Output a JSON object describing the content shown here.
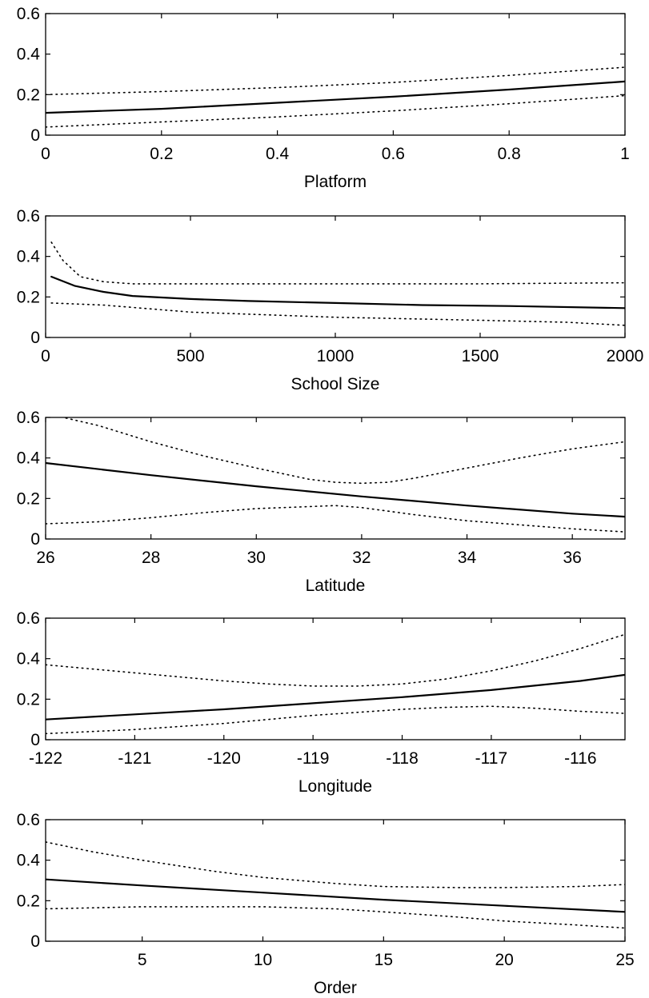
{
  "chart_data": [
    {
      "type": "line",
      "xlabel": "Platform",
      "ylabel": "",
      "xlim": [
        0,
        1
      ],
      "ylim": [
        0,
        0.6
      ],
      "xticks": [
        0,
        0.2,
        0.4,
        0.6,
        0.8,
        1
      ],
      "xtick_labels": [
        "0",
        "0.2",
        "0.4",
        "0.6",
        "0.8",
        "1"
      ],
      "yticks": [
        0,
        0.2,
        0.4,
        0.6
      ],
      "ytick_labels": [
        "0",
        "0.2",
        "0.4",
        "0.6"
      ],
      "series": [
        {
          "style": "solid",
          "x": [
            0,
            0.2,
            0.4,
            0.6,
            0.8,
            1
          ],
          "y": [
            0.11,
            0.13,
            0.16,
            0.19,
            0.225,
            0.265
          ]
        },
        {
          "style": "dotted",
          "x": [
            0,
            0.2,
            0.4,
            0.6,
            0.8,
            1
          ],
          "y": [
            0.2,
            0.215,
            0.235,
            0.26,
            0.295,
            0.335
          ]
        },
        {
          "style": "dotted",
          "x": [
            0,
            0.2,
            0.4,
            0.6,
            0.8,
            1
          ],
          "y": [
            0.04,
            0.065,
            0.09,
            0.12,
            0.155,
            0.195
          ]
        }
      ]
    },
    {
      "type": "line",
      "xlabel": "School Size",
      "ylabel": "",
      "xlim": [
        0,
        2000
      ],
      "ylim": [
        0,
        0.6
      ],
      "xticks": [
        0,
        500,
        1000,
        1500,
        2000
      ],
      "xtick_labels": [
        "0",
        "500",
        "1000",
        "1500",
        "2000"
      ],
      "yticks": [
        0,
        0.2,
        0.4,
        0.6
      ],
      "ytick_labels": [
        "0",
        "0.2",
        "0.4",
        "0.6"
      ],
      "series": [
        {
          "style": "solid",
          "x": [
            20,
            100,
            200,
            300,
            500,
            700,
            1000,
            1300,
            1600,
            2000
          ],
          "y": [
            0.3,
            0.255,
            0.225,
            0.205,
            0.19,
            0.18,
            0.17,
            0.16,
            0.155,
            0.145
          ]
        },
        {
          "style": "dotted",
          "x": [
            20,
            60,
            120,
            200,
            300,
            500,
            1000,
            1500,
            2000
          ],
          "y": [
            0.47,
            0.38,
            0.3,
            0.275,
            0.265,
            0.265,
            0.265,
            0.265,
            0.27
          ]
        },
        {
          "style": "dotted",
          "x": [
            20,
            200,
            500,
            1000,
            1500,
            1800,
            2000
          ],
          "y": [
            0.17,
            0.16,
            0.125,
            0.1,
            0.085,
            0.075,
            0.06
          ]
        }
      ]
    },
    {
      "type": "line",
      "xlabel": "Latitude",
      "ylabel": "",
      "xlim": [
        26,
        37
      ],
      "ylim": [
        0,
        0.6
      ],
      "xticks": [
        26,
        28,
        30,
        32,
        34,
        36
      ],
      "xtick_labels": [
        "26",
        "28",
        "30",
        "32",
        "34",
        "36"
      ],
      "yticks": [
        0,
        0.2,
        0.4,
        0.6
      ],
      "ytick_labels": [
        "0",
        "0.2",
        "0.4",
        "0.6"
      ],
      "series": [
        {
          "style": "solid",
          "x": [
            26,
            28,
            30,
            32,
            34,
            36,
            37
          ],
          "y": [
            0.375,
            0.315,
            0.26,
            0.21,
            0.165,
            0.125,
            0.11
          ]
        },
        {
          "style": "dotted",
          "x": [
            26,
            27,
            28,
            29,
            30,
            31,
            31.5,
            32,
            32.5,
            33,
            34,
            35,
            36,
            37
          ],
          "y": [
            0.62,
            0.56,
            0.48,
            0.41,
            0.35,
            0.295,
            0.28,
            0.275,
            0.28,
            0.3,
            0.35,
            0.4,
            0.445,
            0.48
          ]
        },
        {
          "style": "dotted",
          "x": [
            26,
            27,
            28,
            29,
            30,
            31,
            31.5,
            32,
            33,
            34,
            35,
            36,
            37
          ],
          "y": [
            0.075,
            0.085,
            0.105,
            0.13,
            0.15,
            0.16,
            0.165,
            0.155,
            0.12,
            0.09,
            0.07,
            0.05,
            0.035
          ]
        }
      ]
    },
    {
      "type": "line",
      "xlabel": "Longitude",
      "ylabel": "",
      "xlim": [
        -122,
        -115.5
      ],
      "ylim": [
        0,
        0.6
      ],
      "xticks": [
        -122,
        -121,
        -120,
        -119,
        -118,
        -117,
        -116
      ],
      "xtick_labels": [
        "-122",
        "-121",
        "-120",
        "-119",
        "-118",
        "-117",
        "-116"
      ],
      "yticks": [
        0,
        0.2,
        0.4,
        0.6
      ],
      "ytick_labels": [
        "0",
        "0.2",
        "0.4",
        "0.6"
      ],
      "series": [
        {
          "style": "solid",
          "x": [
            -122,
            -121,
            -120,
            -119,
            -118,
            -117,
            -116,
            -115.5
          ],
          "y": [
            0.1,
            0.125,
            0.15,
            0.18,
            0.21,
            0.245,
            0.29,
            0.32
          ]
        },
        {
          "style": "dotted",
          "x": [
            -122,
            -121,
            -120,
            -119.5,
            -119,
            -118.5,
            -118,
            -117.5,
            -117,
            -116.5,
            -116,
            -115.5
          ],
          "y": [
            0.37,
            0.33,
            0.29,
            0.275,
            0.265,
            0.265,
            0.275,
            0.3,
            0.34,
            0.39,
            0.45,
            0.52
          ]
        },
        {
          "style": "dotted",
          "x": [
            -122,
            -121,
            -120,
            -119,
            -118,
            -117.5,
            -117,
            -116.5,
            -116,
            -115.5
          ],
          "y": [
            0.03,
            0.05,
            0.08,
            0.12,
            0.15,
            0.16,
            0.165,
            0.155,
            0.14,
            0.13
          ]
        }
      ]
    },
    {
      "type": "line",
      "xlabel": "Order",
      "ylabel": "",
      "xlim": [
        1,
        25
      ],
      "ylim": [
        0,
        0.6
      ],
      "xticks": [
        5,
        10,
        15,
        20,
        25
      ],
      "xtick_labels": [
        "5",
        "10",
        "15",
        "20",
        "25"
      ],
      "yticks": [
        0,
        0.2,
        0.4,
        0.6
      ],
      "ytick_labels": [
        "0",
        "0.2",
        "0.4",
        "0.6"
      ],
      "series": [
        {
          "style": "solid",
          "x": [
            1,
            5,
            10,
            15,
            20,
            25
          ],
          "y": [
            0.305,
            0.275,
            0.24,
            0.205,
            0.175,
            0.145
          ]
        },
        {
          "style": "dotted",
          "x": [
            1,
            3,
            5,
            8,
            10,
            13,
            15,
            18,
            20,
            23,
            25
          ],
          "y": [
            0.49,
            0.44,
            0.4,
            0.345,
            0.315,
            0.285,
            0.27,
            0.265,
            0.265,
            0.27,
            0.28
          ]
        },
        {
          "style": "dotted",
          "x": [
            1,
            5,
            10,
            13,
            15,
            18,
            20,
            23,
            25
          ],
          "y": [
            0.16,
            0.17,
            0.17,
            0.16,
            0.145,
            0.12,
            0.1,
            0.08,
            0.065
          ]
        }
      ]
    }
  ]
}
